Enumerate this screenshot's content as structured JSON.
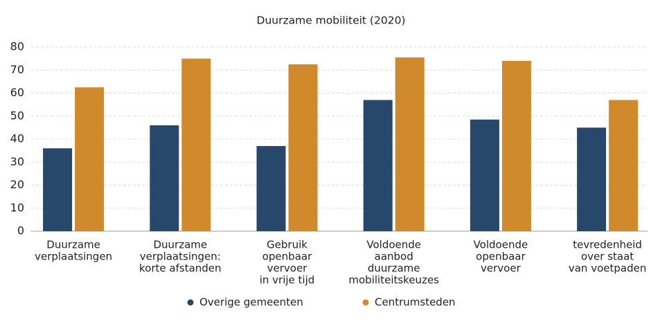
{
  "chart_data": {
    "type": "bar",
    "title": "Duurzame mobiliteit (2020)",
    "categories": [
      [
        "Duurzame",
        "verplaatsingen"
      ],
      [
        "Duurzame",
        "verplaatsingen:",
        "korte afstanden"
      ],
      [
        "Gebruik",
        "openbaar",
        "vervoer",
        "in vrije tijd"
      ],
      [
        "Voldoende",
        "aanbod",
        "duurzame",
        "mobiliteitskeuzes"
      ],
      [
        "Voldoende",
        "openbaar",
        "vervoer"
      ],
      [
        "tevredenheid",
        "over staat",
        "van voetpaden"
      ]
    ],
    "series": [
      {
        "name": "Overige gemeenten",
        "color": "#27476b",
        "values": [
          36,
          46,
          37,
          57,
          48.5,
          45
        ]
      },
      {
        "name": "Centrumsteden",
        "color": "#d08a2c",
        "values": [
          62.5,
          75,
          72.5,
          75.5,
          74,
          57
        ]
      }
    ],
    "ylim": [
      0,
      80
    ],
    "yticks": [
      0,
      10,
      20,
      30,
      40,
      50,
      60,
      70,
      80
    ],
    "grid": true
  }
}
